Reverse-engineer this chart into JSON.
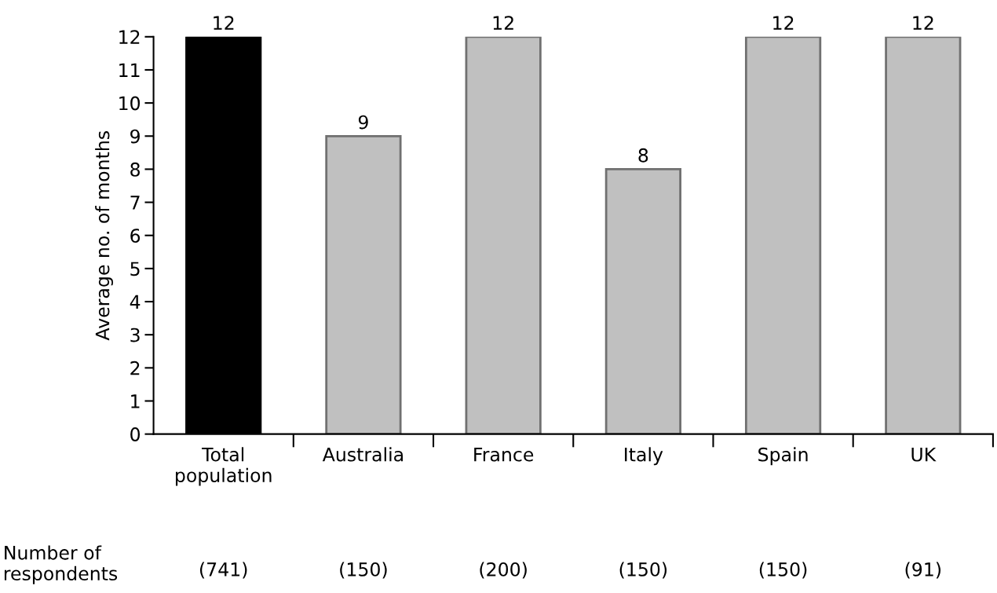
{
  "chart_data": {
    "type": "bar",
    "ylabel": "Average no. of months",
    "categories": [
      "Total\npopulation",
      "Australia",
      "France",
      "Italy",
      "Spain",
      "UK"
    ],
    "values": [
      12,
      9,
      12,
      8,
      12,
      12
    ],
    "colors": [
      "#000000",
      "#c0c0c0",
      "#c0c0c0",
      "#c0c0c0",
      "#c0c0c0",
      "#c0c0c0"
    ],
    "ylim": [
      0,
      12
    ],
    "yticks": [
      0,
      1,
      2,
      3,
      4,
      5,
      6,
      7,
      8,
      9,
      10,
      11,
      12
    ],
    "data_labels": true,
    "grid": false,
    "legend": false,
    "annotations": [
      "Number of\nrespondents",
      "(741)",
      "(150)",
      "(200)",
      "(150)",
      "(150)",
      "(91)"
    ]
  }
}
